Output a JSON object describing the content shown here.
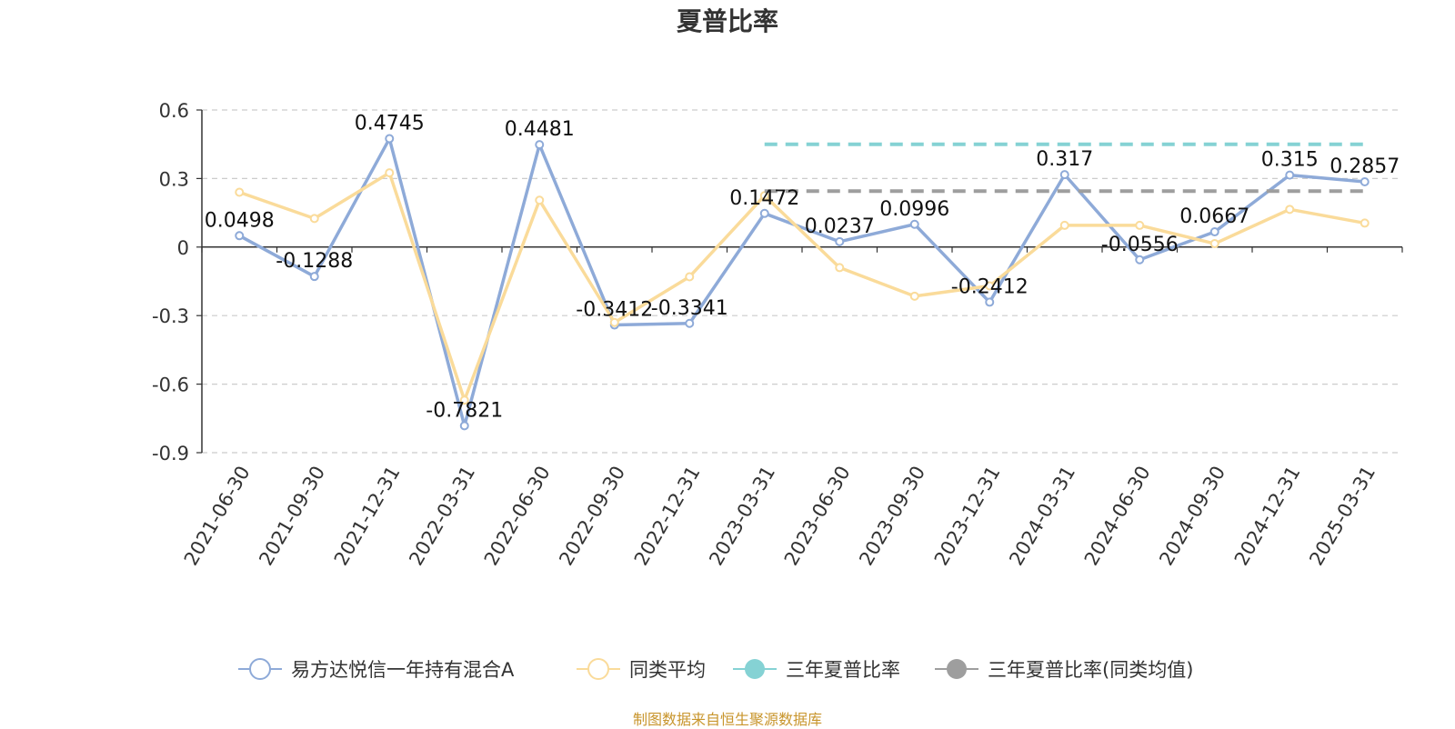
{
  "chart_data": {
    "type": "line",
    "title": "夏普比率",
    "categories": [
      "2021-06-30",
      "2021-09-30",
      "2021-12-31",
      "2022-03-31",
      "2022-06-30",
      "2022-09-30",
      "2022-12-31",
      "2023-03-31",
      "2023-06-30",
      "2023-09-30",
      "2023-12-31",
      "2024-03-31",
      "2024-06-30",
      "2024-09-30",
      "2024-12-31",
      "2025-03-31"
    ],
    "ylim": [
      -0.9,
      0.6
    ],
    "yticks": [
      "0.6",
      "0.3",
      "0",
      "-0.3",
      "-0.6",
      "-0.9"
    ],
    "grid": true,
    "legend_position": "bottom",
    "series": [
      {
        "name": "易方达悦信一年持有混合A",
        "color": "#8eaad8",
        "values": [
          0.0498,
          -0.1288,
          0.4745,
          -0.7821,
          0.4481,
          -0.3412,
          -0.3341,
          0.1472,
          0.0237,
          0.0996,
          -0.2412,
          0.317,
          -0.0556,
          0.0667,
          0.315,
          0.2857
        ],
        "labels": [
          "0.0498",
          "-0.1288",
          "0.4745",
          "-0.7821",
          "0.4481",
          "-0.3412",
          "-0.3341",
          "0.1472",
          "0.0237",
          "0.0996",
          "-0.2412",
          "0.317",
          "-0.0556",
          "0.0667",
          "0.315",
          "0.2857"
        ]
      },
      {
        "name": "同类平均",
        "color": "#fadb9a",
        "values": [
          0.24,
          0.125,
          0.325,
          -0.67,
          0.205,
          -0.33,
          -0.13,
          0.225,
          -0.09,
          -0.215,
          -0.17,
          0.095,
          0.095,
          0.015,
          0.165,
          0.105
        ]
      },
      {
        "name": "三年夏普比率",
        "color": "#85d2d4",
        "dashed": true,
        "from": "2023-03-31",
        "to": "2025-03-31",
        "value": 0.45
      },
      {
        "name": "三年夏普比率(同类均值)",
        "color": "#9e9e9e",
        "dashed": true,
        "from": "2023-03-31",
        "to": "2025-03-31",
        "value": 0.245
      }
    ]
  },
  "source_note": "制图数据来自恒生聚源数据库"
}
